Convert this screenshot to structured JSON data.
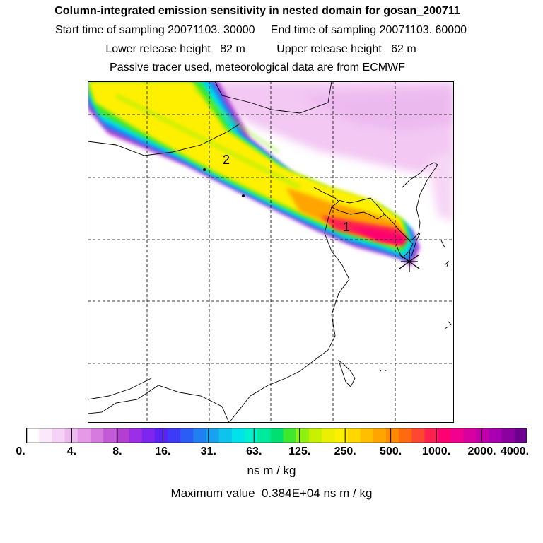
{
  "header": {
    "title": "Column-integrated emission sensitivity in nested domain for gosan_200711",
    "sampling": "Start time of sampling 20071103. 30000     End time of sampling 20071103. 60000",
    "release": "Lower release height   82 m          Upper release height   62 m",
    "tracer": "Passive tracer used, meteorological data are from ECMWF"
  },
  "map": {
    "markers": [
      {
        "label": "1"
      },
      {
        "label": "2"
      }
    ],
    "receptor_symbol": "star-icon"
  },
  "colorbar": {
    "labels": [
      "0.",
      "4.",
      "8.",
      "16.",
      "31.",
      "63.",
      "125.",
      "250.",
      "500.",
      "1000.",
      "2000.",
      "4000."
    ],
    "colors": [
      "#ffffff",
      "#fbe8fb",
      "#f7d2f7",
      "#eeb8f0",
      "#e59ae8",
      "#d67ae0",
      "#c45ad8",
      "#b23fd2",
      "#9d2ee8",
      "#7e26f0",
      "#5a22f4",
      "#3b3bf8",
      "#2a5cf6",
      "#1f80f2",
      "#16a2ee",
      "#0fc4ec",
      "#00e2ea",
      "#00f0d0",
      "#00ea9c",
      "#00e070",
      "#3ee82c",
      "#8ef00c",
      "#c8f000",
      "#ecf000",
      "#fff000",
      "#ffd800",
      "#ffbf00",
      "#ffa400",
      "#ff8a00",
      "#ff6a10",
      "#ff4630",
      "#ff2050",
      "#ff0070",
      "#f20090",
      "#d800a0",
      "#c000a8",
      "#a800b0",
      "#8c00a0",
      "#6e0090"
    ],
    "units": "ns m / kg",
    "maximum": "Maximum value  0.384E+04 ns m / kg"
  },
  "chart_data": {
    "type": "heatmap",
    "title": "Column-integrated emission sensitivity in nested domain for gosan_200711",
    "colorbar_ticks": [
      0,
      4,
      8,
      16,
      31,
      63,
      125,
      250,
      500,
      1000,
      2000,
      4000
    ],
    "colorbar_units": "ns m / kg",
    "maximum_value": 3840,
    "grid": true
  }
}
